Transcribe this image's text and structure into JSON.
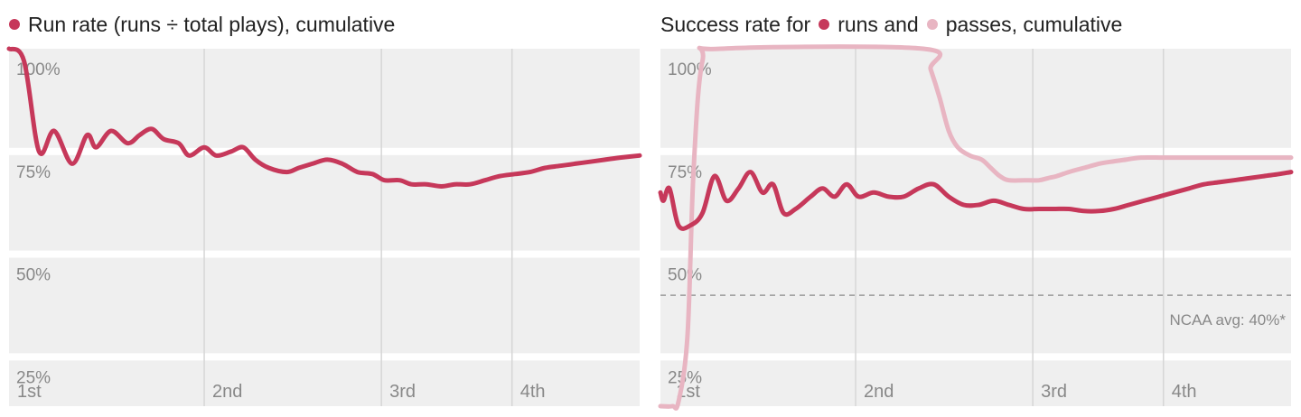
{
  "colors": {
    "runs": "#c6385a",
    "passes": "#e8b5c2",
    "band": "#efefef",
    "grid": "#d6d6d6",
    "ref": "#999999"
  },
  "chart_data": [
    {
      "type": "line",
      "title": "Run rate (runs ÷ total plays), cumulative",
      "xlabel": "",
      "ylabel": "",
      "x_categories": [
        "1st",
        "2nd",
        "3rd",
        "4th"
      ],
      "quarter_starts": [
        0,
        1.3,
        2.48,
        3.35
      ],
      "xlim": [
        0,
        4.2
      ],
      "ylim": [
        13,
        100
      ],
      "yticks": [
        100,
        75,
        50,
        25
      ],
      "ytick_labels": [
        "100%",
        "75%",
        "50%",
        "25%"
      ],
      "grid": true,
      "series": [
        {
          "color_key": "runs",
          "x": [
            0,
            0.1,
            0.2,
            0.3,
            0.42,
            0.52,
            0.58,
            0.68,
            0.79,
            0.87,
            0.95,
            1.03,
            1.13,
            1.2,
            1.3,
            1.38,
            1.48,
            1.56,
            1.64,
            1.73,
            1.85,
            1.93,
            2.02,
            2.12,
            2.22,
            2.32,
            2.42,
            2.5,
            2.6,
            2.68,
            2.78,
            2.88,
            2.97,
            3.07,
            3.17,
            3.27,
            3.37,
            3.47,
            3.57,
            3.67,
            3.77,
            3.87,
            3.97,
            4.07,
            4.2
          ],
          "y": [
            100,
            97,
            75,
            80,
            72,
            79,
            76,
            80,
            77,
            79,
            80.5,
            78,
            77,
            74,
            76,
            74,
            75,
            76,
            73,
            71,
            70,
            71,
            72,
            73,
            72,
            70,
            69.5,
            68,
            68,
            67,
            67,
            66.5,
            67,
            67,
            68,
            69,
            69.5,
            70,
            71,
            71.5,
            72,
            72.5,
            73,
            73.5,
            74
          ]
        }
      ]
    },
    {
      "type": "line",
      "title": "Success rate for runs and passes, cumulative",
      "title_parts": {
        "prefix": "Success rate for",
        "runs": "runs and",
        "passes": "passes, cumulative"
      },
      "xlabel": "",
      "ylabel": "",
      "x_categories": [
        "1st",
        "2nd",
        "3rd",
        "4th"
      ],
      "quarter_starts": [
        0.05,
        1.3,
        2.48,
        3.35
      ],
      "xlim": [
        0,
        4.2
      ],
      "ylim": [
        13,
        100
      ],
      "yticks": [
        100,
        75,
        50,
        25
      ],
      "ytick_labels": [
        "100%",
        "75%",
        "50%",
        "25%"
      ],
      "grid": true,
      "reference_line": {
        "y": 40,
        "label": "NCAA avg: 40%*"
      },
      "series": [
        {
          "name": "runs",
          "color_key": "runs",
          "x": [
            0,
            0.02,
            0.06,
            0.12,
            0.2,
            0.28,
            0.36,
            0.44,
            0.52,
            0.6,
            0.68,
            0.75,
            0.82,
            0.9,
            1.0,
            1.08,
            1.16,
            1.24,
            1.32,
            1.42,
            1.52,
            1.62,
            1.72,
            1.82,
            1.92,
            2.02,
            2.12,
            2.22,
            2.32,
            2.42,
            2.52,
            2.62,
            2.72,
            2.82,
            2.92,
            3.02,
            3.12,
            3.22,
            3.32,
            3.42,
            3.52,
            3.62,
            3.72,
            3.82,
            3.92,
            4.02,
            4.12,
            4.2
          ],
          "y": [
            65,
            63,
            66,
            57,
            57,
            60,
            69,
            63,
            66,
            70,
            65,
            67,
            60,
            61,
            64,
            66,
            64,
            67,
            64,
            65,
            64,
            64,
            66,
            67,
            64,
            62,
            62,
            63,
            62,
            61,
            61,
            61,
            61,
            60.5,
            60.5,
            61,
            62,
            63,
            64,
            65,
            66,
            67,
            67.5,
            68,
            68.5,
            69,
            69.5,
            70
          ]
        },
        {
          "name": "passes",
          "color_key": "passes",
          "x": [
            0,
            0.08,
            0.12,
            0.18,
            0.22,
            0.28,
            0.4,
            1.75,
            1.8,
            1.86,
            1.92,
            1.98,
            2.06,
            2.14,
            2.2,
            2.26,
            2.32,
            2.42,
            2.52,
            2.58,
            2.64,
            2.72,
            2.82,
            2.92,
            3.0,
            3.1,
            3.2,
            3.35,
            3.5,
            3.7,
            3.9,
            4.2
          ],
          "y": [
            13,
            13,
            14,
            30,
            70,
            97,
            100,
            100,
            95,
            88,
            80,
            76,
            74,
            73,
            71,
            69,
            68,
            68,
            68,
            68.5,
            69,
            70,
            71,
            72,
            72.5,
            73,
            73.5,
            73.5,
            73.5,
            73.5,
            73.5,
            73.5
          ]
        }
      ]
    }
  ]
}
